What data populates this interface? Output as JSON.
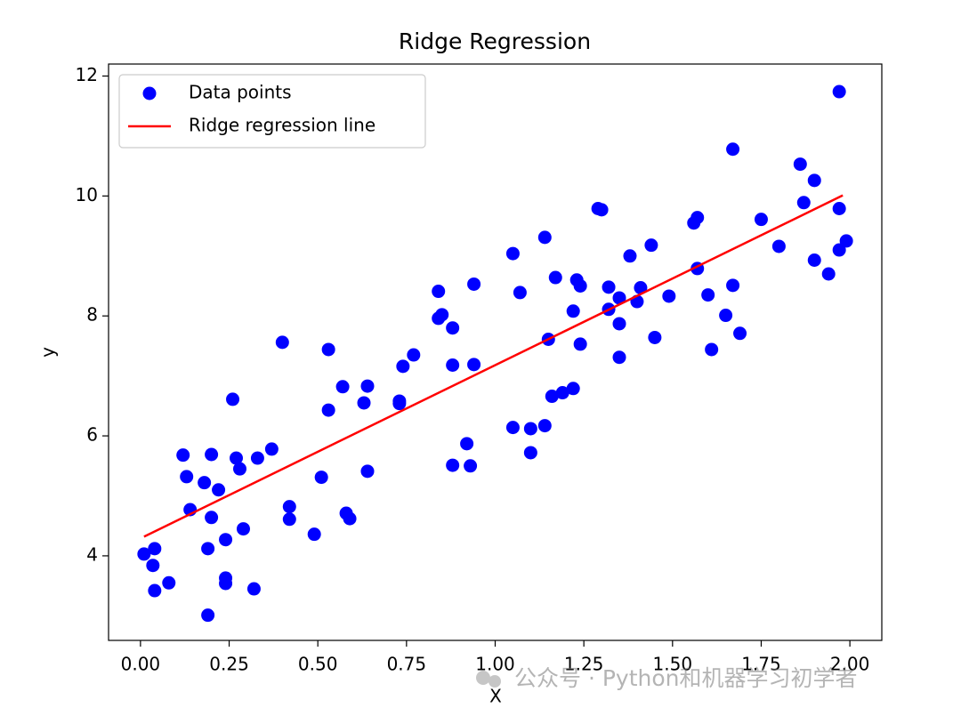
{
  "chart_data": {
    "type": "scatter",
    "title": "Ridge Regression",
    "x_label": "X",
    "y_label": "y",
    "xlim": [
      -0.09,
      2.09
    ],
    "ylim": [
      2.59,
      12.2
    ],
    "xticks": [
      {
        "value": 0,
        "label": "0.00"
      },
      {
        "value": 0.25,
        "label": "0.25"
      },
      {
        "value": 0.5,
        "label": "0.50"
      },
      {
        "value": 0.75,
        "label": "0.75"
      },
      {
        "value": 1,
        "label": "1.00"
      },
      {
        "value": 1.25,
        "label": "1.25"
      },
      {
        "value": 1.5,
        "label": "1.50"
      },
      {
        "value": 1.75,
        "label": "1.75"
      },
      {
        "value": 2,
        "label": "2.00"
      }
    ],
    "yticks": [
      4,
      6,
      8,
      10,
      12
    ],
    "grid": false,
    "legend": "upper left",
    "series": [
      {
        "name": "Data points",
        "color": "#0000ff",
        "type": "scatter",
        "x": [
          0.01,
          0.04,
          0.035,
          0.04,
          0.08,
          0.12,
          0.13,
          0.14,
          0.18,
          0.2,
          0.19,
          0.19,
          0.2,
          0.22,
          0.24,
          0.24,
          0.24,
          0.26,
          0.27,
          0.28,
          0.29,
          0.32,
          0.33,
          0.37,
          0.4,
          0.42,
          0.42,
          0.49,
          0.51,
          0.53,
          0.53,
          0.57,
          0.58,
          0.59,
          0.63,
          0.64,
          0.64,
          0.73,
          0.73,
          0.74,
          0.77,
          0.84,
          0.84,
          0.85,
          0.88,
          0.88,
          0.88,
          0.92,
          0.93,
          0.94,
          0.94,
          1.05,
          1.05,
          1.07,
          1.1,
          1.1,
          1.14,
          1.14,
          1.15,
          1.16,
          1.17,
          1.19,
          1.22,
          1.22,
          1.23,
          1.24,
          1.24,
          1.29,
          1.3,
          1.32,
          1.32,
          1.35,
          1.35,
          1.35,
          1.38,
          1.4,
          1.41,
          1.44,
          1.45,
          1.49,
          1.56,
          1.57,
          1.57,
          1.6,
          1.61,
          1.65,
          1.67,
          1.67,
          1.69,
          1.75,
          1.8,
          1.86,
          1.87,
          1.9,
          1.9,
          1.94,
          1.97,
          1.97,
          1.97,
          1.99
        ],
        "values": [
          4.03,
          4.12,
          3.84,
          3.42,
          3.55,
          5.68,
          5.32,
          4.77,
          5.22,
          5.69,
          3.01,
          4.12,
          4.64,
          5.1,
          4.27,
          3.63,
          3.54,
          6.61,
          5.63,
          5.45,
          4.45,
          3.45,
          5.63,
          5.78,
          7.56,
          4.82,
          4.61,
          4.36,
          5.31,
          7.44,
          6.43,
          6.82,
          4.71,
          4.62,
          6.55,
          6.83,
          5.41,
          6.54,
          6.58,
          7.16,
          7.35,
          8.41,
          7.96,
          8.02,
          5.51,
          7.8,
          7.18,
          5.87,
          5.5,
          7.19,
          8.53,
          9.04,
          6.14,
          8.39,
          6.12,
          5.72,
          6.17,
          9.31,
          7.61,
          6.66,
          8.64,
          6.72,
          8.08,
          6.79,
          8.6,
          7.53,
          8.5,
          9.79,
          9.77,
          8.48,
          8.11,
          7.31,
          8.3,
          7.87,
          9.0,
          8.24,
          8.47,
          9.18,
          7.64,
          8.33,
          9.55,
          9.64,
          8.79,
          8.35,
          7.44,
          8.01,
          8.51,
          10.78,
          7.71,
          9.61,
          9.16,
          10.53,
          9.89,
          10.26,
          8.93,
          8.7,
          9.79,
          9.1,
          11.74,
          9.25
        ]
      },
      {
        "name": "Ridge regression line",
        "color": "#ff0000",
        "type": "line",
        "x": [
          0.01,
          1.98
        ],
        "values": [
          4.32,
          10.01
        ]
      }
    ]
  },
  "watermark": "公众号 · Python和机器学习初学者"
}
